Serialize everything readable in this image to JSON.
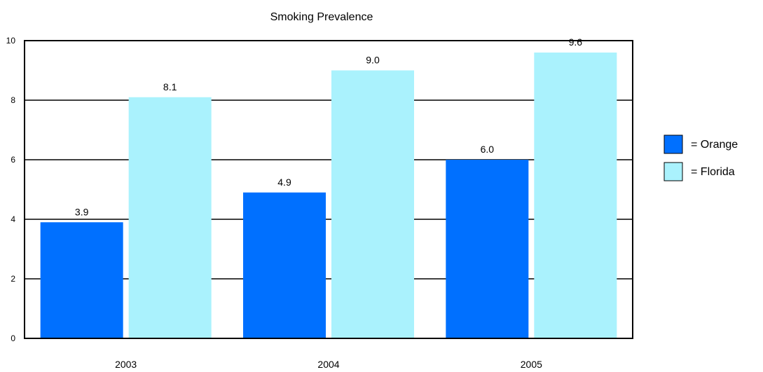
{
  "chart_data": {
    "type": "bar",
    "title": "Smoking Prevalence",
    "xlabel": "",
    "ylabel": "",
    "categories": [
      "2003",
      "2004",
      "2005"
    ],
    "series": [
      {
        "name": "= Orange",
        "values": [
          3.9,
          4.9,
          6.0
        ],
        "labels": [
          "3.9",
          "4.9",
          "6.0"
        ],
        "color": "#0070ff"
      },
      {
        "name": "= Florida",
        "values": [
          8.1,
          9.0,
          9.6
        ],
        "labels": [
          "8.1",
          "9.0",
          "9.6"
        ],
        "color": "#aaf2fd"
      }
    ],
    "ylim": [
      0,
      10
    ],
    "yticks": [
      "0",
      "2",
      "4",
      "6",
      "8",
      "10"
    ],
    "grid": true,
    "legend_position": "right"
  }
}
